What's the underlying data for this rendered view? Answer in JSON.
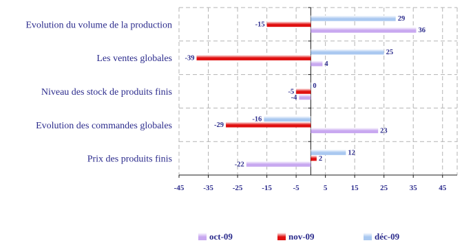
{
  "chart_data": {
    "type": "bar",
    "orientation": "horizontal",
    "categories": [
      "Evolution du volume de la production",
      "Les ventes globales",
      "Niveau des stock de produits finis",
      "Evolution des commandes globales",
      "Prix des produits finis"
    ],
    "series": [
      {
        "name": "déc-09",
        "color": "#a9c8f0",
        "values": [
          29,
          25,
          0,
          -16,
          12
        ]
      },
      {
        "name": "nov-09",
        "color": "#e01010",
        "values": [
          -15,
          -39,
          -5,
          -29,
          2
        ]
      },
      {
        "name": "oct-09",
        "color": "#c8a8f0",
        "values": [
          36,
          4,
          -4,
          23,
          -22
        ]
      }
    ],
    "legend_order": [
      "oct-09",
      "nov-09",
      "déc-09"
    ],
    "xticks": [
      -45,
      -35,
      -25,
      -15,
      -5,
      5,
      15,
      25,
      35,
      45
    ],
    "xlim": [
      -45,
      50
    ],
    "grid": true,
    "legend_position": "bottom"
  }
}
